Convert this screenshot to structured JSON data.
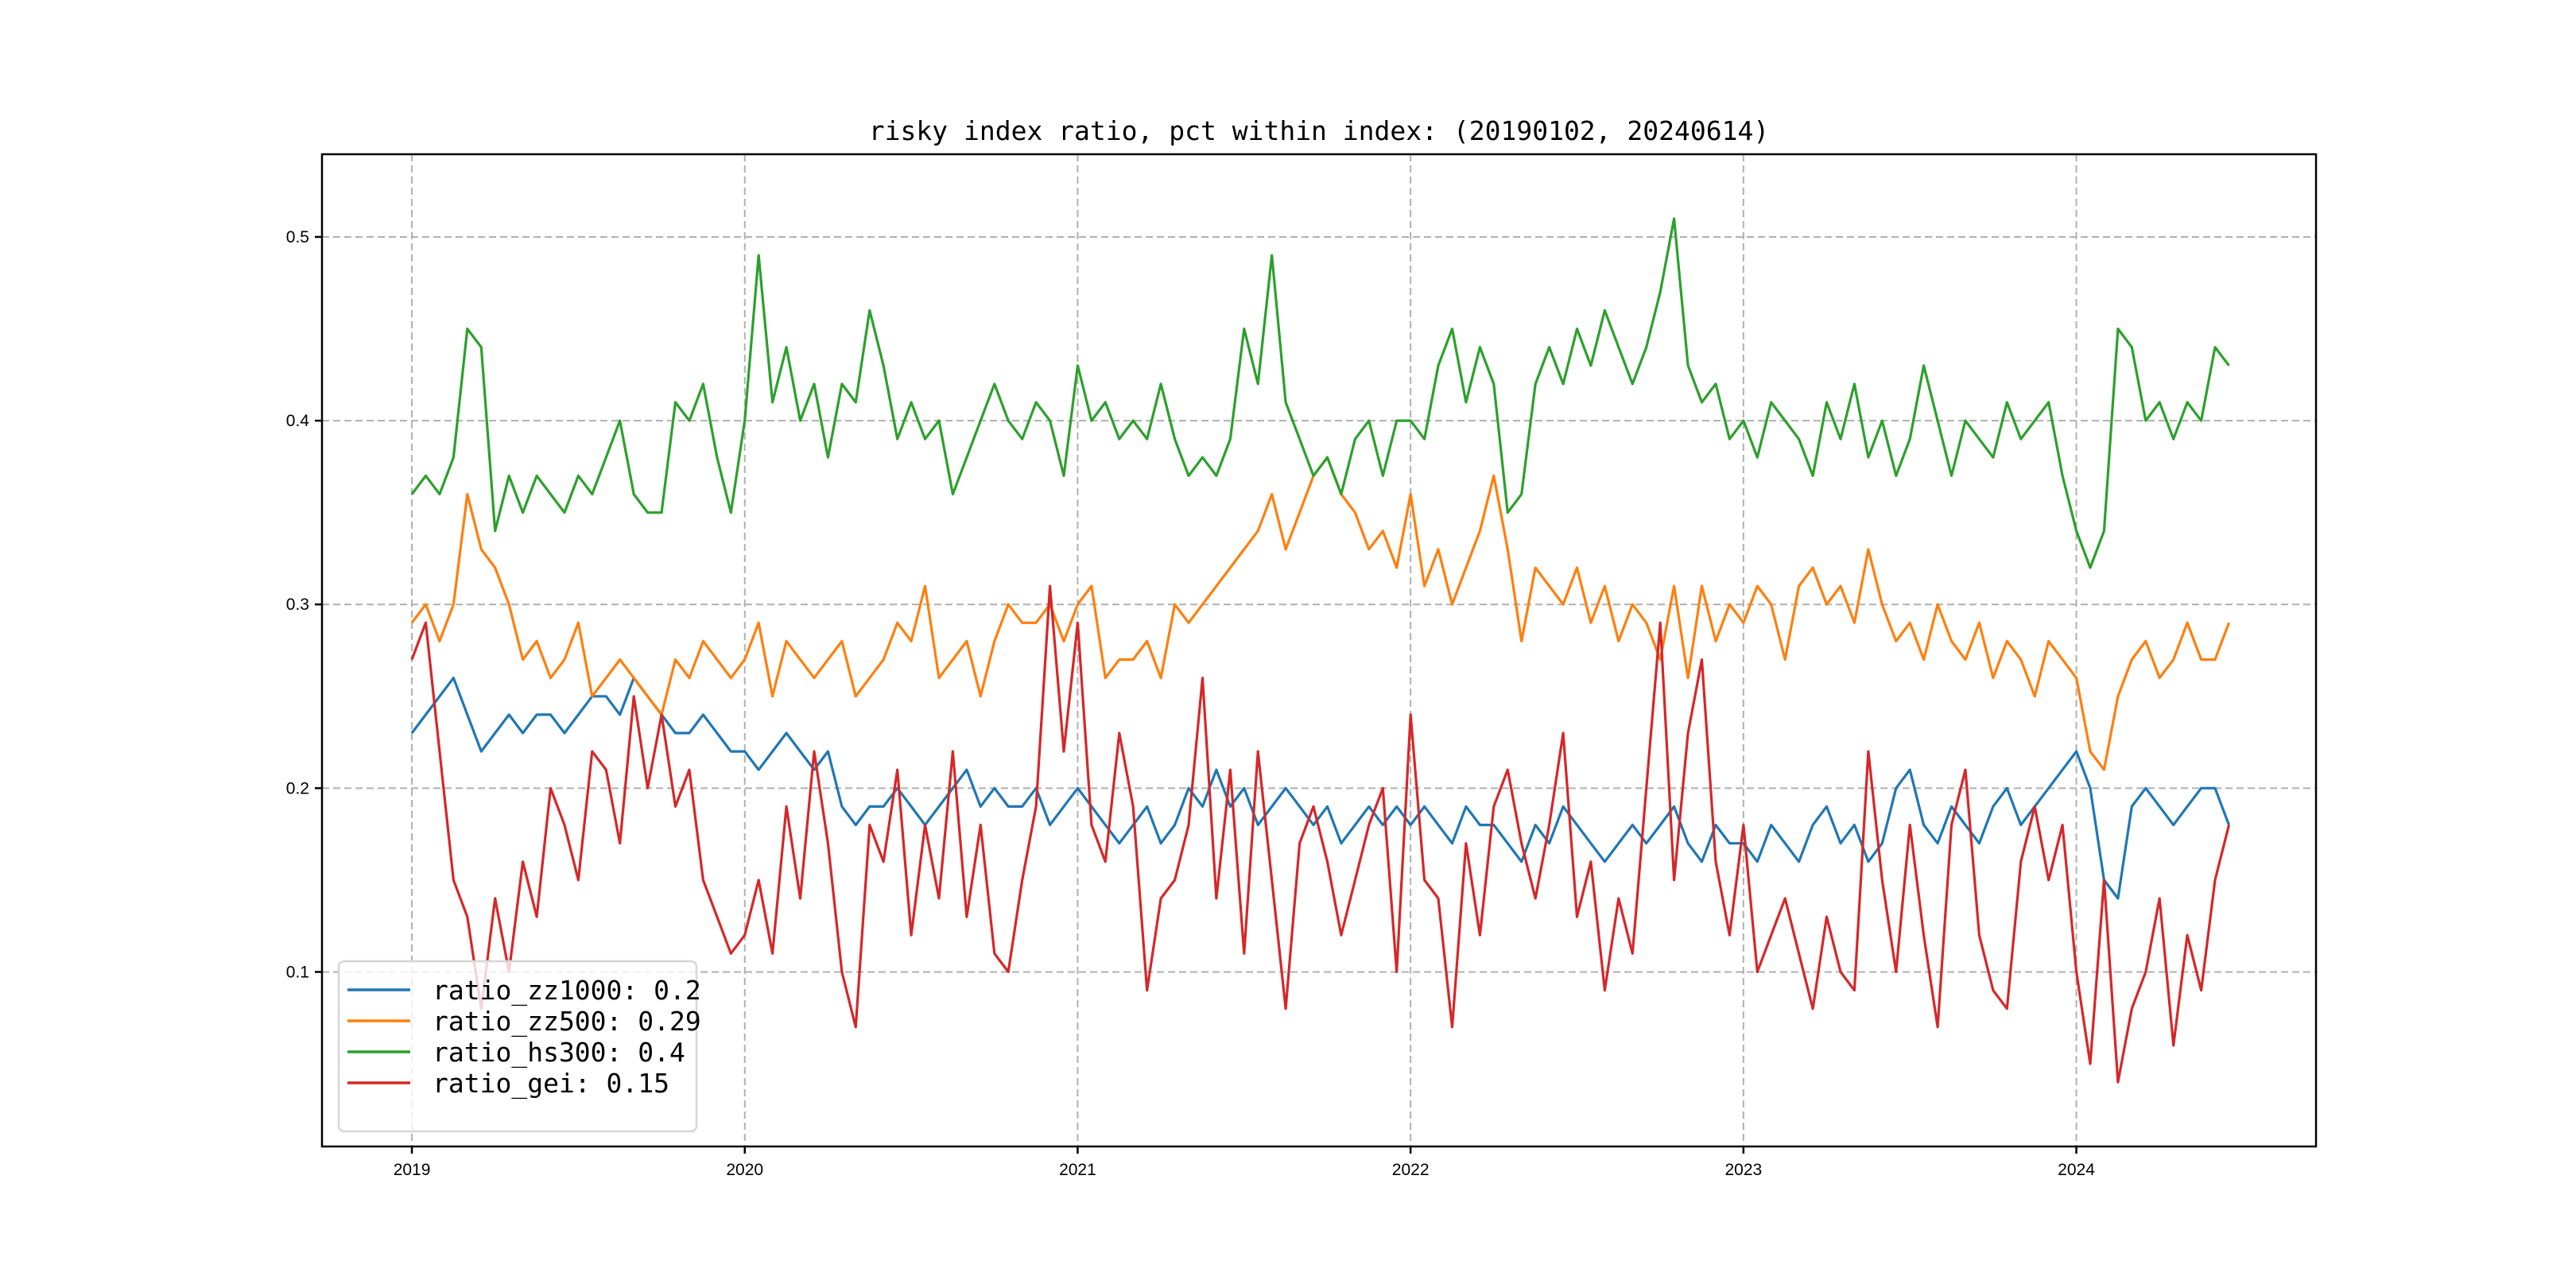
{
  "chart_data": {
    "type": "line",
    "title": "risky index ratio, pct within index: (20190102, 20240614)",
    "xlabel": "",
    "ylabel": "",
    "x_start": 2019.0,
    "x_step_years": 0.041667,
    "xlim": [
      2018.73,
      2024.72
    ],
    "ylim": [
      0.005,
      0.545
    ],
    "x_ticks": [
      2019,
      2020,
      2021,
      2022,
      2023,
      2024
    ],
    "x_tick_labels": [
      "2019",
      "2020",
      "2021",
      "2022",
      "2023",
      "2024"
    ],
    "y_ticks": [
      0.1,
      0.2,
      0.3,
      0.4,
      0.5
    ],
    "y_tick_labels": [
      "0.1",
      "0.2",
      "0.3",
      "0.4",
      "0.5"
    ],
    "grid": true,
    "legend_position": "lower-left",
    "series": [
      {
        "name": "ratio_zz1000",
        "legend_label": "ratio_zz1000: 0.2",
        "color": "#1f77b4",
        "values": [
          0.23,
          0.24,
          0.25,
          0.26,
          0.24,
          0.22,
          0.23,
          0.24,
          0.23,
          0.24,
          0.24,
          0.23,
          0.24,
          0.25,
          0.25,
          0.24,
          0.26,
          0.25,
          0.24,
          0.23,
          0.23,
          0.24,
          0.23,
          0.22,
          0.22,
          0.21,
          0.22,
          0.23,
          0.22,
          0.21,
          0.22,
          0.19,
          0.18,
          0.19,
          0.19,
          0.2,
          0.19,
          0.18,
          0.19,
          0.2,
          0.21,
          0.19,
          0.2,
          0.19,
          0.19,
          0.2,
          0.18,
          0.19,
          0.2,
          0.19,
          0.18,
          0.17,
          0.18,
          0.19,
          0.17,
          0.18,
          0.2,
          0.19,
          0.21,
          0.19,
          0.2,
          0.18,
          0.19,
          0.2,
          0.19,
          0.18,
          0.19,
          0.17,
          0.18,
          0.19,
          0.18,
          0.19,
          0.18,
          0.19,
          0.18,
          0.17,
          0.19,
          0.18,
          0.18,
          0.17,
          0.16,
          0.18,
          0.17,
          0.19,
          0.18,
          0.17,
          0.16,
          0.17,
          0.18,
          0.17,
          0.18,
          0.19,
          0.17,
          0.16,
          0.18,
          0.17,
          0.17,
          0.16,
          0.18,
          0.17,
          0.16,
          0.18,
          0.19,
          0.17,
          0.18,
          0.16,
          0.17,
          0.2,
          0.21,
          0.18,
          0.17,
          0.19,
          0.18,
          0.17,
          0.19,
          0.2,
          0.18,
          0.19,
          0.2,
          0.21,
          0.22,
          0.2,
          0.15,
          0.14,
          0.19,
          0.2,
          0.19,
          0.18,
          0.19,
          0.2,
          0.2,
          0.18
        ]
      },
      {
        "name": "ratio_zz500",
        "legend_label": "ratio_zz500: 0.29",
        "color": "#ff7f0e",
        "values": [
          0.29,
          0.3,
          0.28,
          0.3,
          0.36,
          0.33,
          0.32,
          0.3,
          0.27,
          0.28,
          0.26,
          0.27,
          0.29,
          0.25,
          0.26,
          0.27,
          0.26,
          0.25,
          0.24,
          0.27,
          0.26,
          0.28,
          0.27,
          0.26,
          0.27,
          0.29,
          0.25,
          0.28,
          0.27,
          0.26,
          0.27,
          0.28,
          0.25,
          0.26,
          0.27,
          0.29,
          0.28,
          0.31,
          0.26,
          0.27,
          0.28,
          0.25,
          0.28,
          0.3,
          0.29,
          0.29,
          0.3,
          0.28,
          0.3,
          0.31,
          0.26,
          0.27,
          0.27,
          0.28,
          0.26,
          0.3,
          0.29,
          0.3,
          0.31,
          0.32,
          0.33,
          0.34,
          0.36,
          0.33,
          0.35,
          0.37,
          0.38,
          0.36,
          0.35,
          0.33,
          0.34,
          0.32,
          0.36,
          0.31,
          0.33,
          0.3,
          0.32,
          0.34,
          0.37,
          0.33,
          0.28,
          0.32,
          0.31,
          0.3,
          0.32,
          0.29,
          0.31,
          0.28,
          0.3,
          0.29,
          0.27,
          0.31,
          0.26,
          0.31,
          0.28,
          0.3,
          0.29,
          0.31,
          0.3,
          0.27,
          0.31,
          0.32,
          0.3,
          0.31,
          0.29,
          0.33,
          0.3,
          0.28,
          0.29,
          0.27,
          0.3,
          0.28,
          0.27,
          0.29,
          0.26,
          0.28,
          0.27,
          0.25,
          0.28,
          0.27,
          0.26,
          0.22,
          0.21,
          0.25,
          0.27,
          0.28,
          0.26,
          0.27,
          0.29,
          0.27,
          0.27,
          0.29
        ]
      },
      {
        "name": "ratio_hs300",
        "legend_label": "ratio_hs300: 0.4",
        "color": "#2ca02c",
        "values": [
          0.36,
          0.37,
          0.36,
          0.38,
          0.45,
          0.44,
          0.34,
          0.37,
          0.35,
          0.37,
          0.36,
          0.35,
          0.37,
          0.36,
          0.38,
          0.4,
          0.36,
          0.35,
          0.35,
          0.41,
          0.4,
          0.42,
          0.38,
          0.35,
          0.4,
          0.49,
          0.41,
          0.44,
          0.4,
          0.42,
          0.38,
          0.42,
          0.41,
          0.46,
          0.43,
          0.39,
          0.41,
          0.39,
          0.4,
          0.36,
          0.38,
          0.4,
          0.42,
          0.4,
          0.39,
          0.41,
          0.4,
          0.37,
          0.43,
          0.4,
          0.41,
          0.39,
          0.4,
          0.39,
          0.42,
          0.39,
          0.37,
          0.38,
          0.37,
          0.39,
          0.45,
          0.42,
          0.49,
          0.41,
          0.39,
          0.37,
          0.38,
          0.36,
          0.39,
          0.4,
          0.37,
          0.4,
          0.4,
          0.39,
          0.43,
          0.45,
          0.41,
          0.44,
          0.42,
          0.35,
          0.36,
          0.42,
          0.44,
          0.42,
          0.45,
          0.43,
          0.46,
          0.44,
          0.42,
          0.44,
          0.47,
          0.51,
          0.43,
          0.41,
          0.42,
          0.39,
          0.4,
          0.38,
          0.41,
          0.4,
          0.39,
          0.37,
          0.41,
          0.39,
          0.42,
          0.38,
          0.4,
          0.37,
          0.39,
          0.43,
          0.4,
          0.37,
          0.4,
          0.39,
          0.38,
          0.41,
          0.39,
          0.4,
          0.41,
          0.37,
          0.34,
          0.32,
          0.34,
          0.45,
          0.44,
          0.4,
          0.41,
          0.39,
          0.41,
          0.4,
          0.44,
          0.43
        ]
      },
      {
        "name": "ratio_gei",
        "legend_label": "ratio_gei: 0.15",
        "color": "#d62728",
        "values": [
          0.27,
          0.29,
          0.22,
          0.15,
          0.13,
          0.08,
          0.14,
          0.1,
          0.16,
          0.13,
          0.2,
          0.18,
          0.15,
          0.22,
          0.21,
          0.17,
          0.25,
          0.2,
          0.24,
          0.19,
          0.21,
          0.15,
          0.13,
          0.11,
          0.12,
          0.15,
          0.11,
          0.19,
          0.14,
          0.22,
          0.17,
          0.1,
          0.07,
          0.18,
          0.16,
          0.21,
          0.12,
          0.18,
          0.14,
          0.22,
          0.13,
          0.18,
          0.11,
          0.1,
          0.15,
          0.19,
          0.31,
          0.22,
          0.29,
          0.18,
          0.16,
          0.23,
          0.19,
          0.09,
          0.14,
          0.15,
          0.18,
          0.26,
          0.14,
          0.21,
          0.11,
          0.22,
          0.15,
          0.08,
          0.17,
          0.19,
          0.16,
          0.12,
          0.15,
          0.18,
          0.2,
          0.1,
          0.24,
          0.15,
          0.14,
          0.07,
          0.17,
          0.12,
          0.19,
          0.21,
          0.17,
          0.14,
          0.18,
          0.23,
          0.13,
          0.16,
          0.09,
          0.14,
          0.11,
          0.2,
          0.29,
          0.15,
          0.23,
          0.27,
          0.16,
          0.12,
          0.18,
          0.1,
          0.12,
          0.14,
          0.11,
          0.08,
          0.13,
          0.1,
          0.09,
          0.22,
          0.15,
          0.1,
          0.18,
          0.12,
          0.07,
          0.18,
          0.21,
          0.12,
          0.09,
          0.08,
          0.16,
          0.19,
          0.15,
          0.18,
          0.1,
          0.05,
          0.15,
          0.04,
          0.08,
          0.1,
          0.14,
          0.06,
          0.12,
          0.09,
          0.15,
          0.18
        ]
      }
    ]
  }
}
